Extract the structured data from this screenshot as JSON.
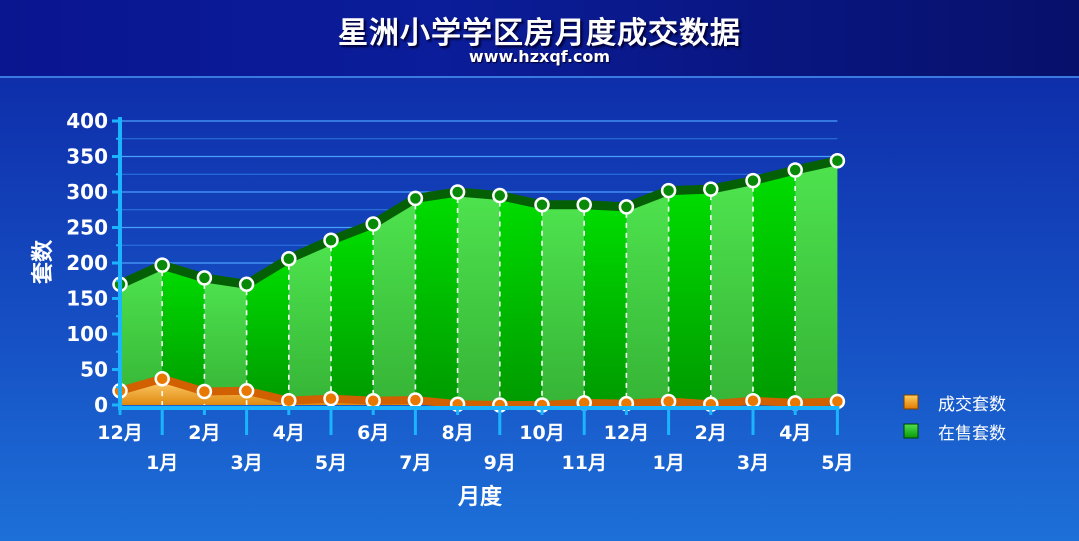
{
  "title": "星洲小学学区房月度成交数据",
  "subtitle": "www.hzxqf.com",
  "chart_data": {
    "type": "area",
    "title": "星洲小学学区房月度成交数据",
    "xlabel": "月度",
    "ylabel": "套数",
    "ylim": [
      0,
      400
    ],
    "yticks": [
      0,
      50,
      100,
      150,
      200,
      250,
      300,
      350,
      400
    ],
    "categories": [
      "12月",
      "1月",
      "2月",
      "3月",
      "4月",
      "5月",
      "6月",
      "7月",
      "8月",
      "9月",
      "10月",
      "11月",
      "12月",
      "1月",
      "2月",
      "3月",
      "4月",
      "5月"
    ],
    "series": [
      {
        "name": "在售套数",
        "color": "#08b808",
        "values": [
          170,
          197,
          179,
          170,
          206,
          232,
          255,
          291,
          300,
          295,
          282,
          282,
          279,
          302,
          304,
          316,
          331,
          344
        ]
      },
      {
        "name": "成交套数",
        "color": "#f0a020",
        "values": [
          20,
          37,
          19,
          20,
          6,
          9,
          6,
          7,
          1,
          0,
          0,
          3,
          2,
          5,
          1,
          6,
          3,
          5
        ]
      }
    ],
    "legend_position": "right",
    "grid": true
  }
}
